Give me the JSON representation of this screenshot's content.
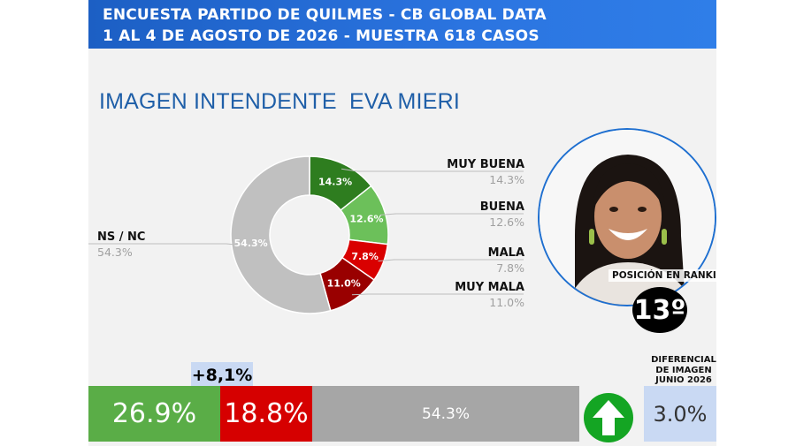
{
  "header": {
    "line1": "ENCUESTA PARTIDO DE QUILMES - CB GLOBAL DATA",
    "line2": "1 AL 4 DE AGOSTO DE 2026 - MUESTRA 618 CASOS"
  },
  "title": "IMAGEN INTENDENTE  EVA MIERI",
  "chart_data": {
    "type": "pie",
    "title": "IMAGEN INTENDENTE  EVA MIERI",
    "slices": [
      {
        "label": "MUY BUENA",
        "value": 14.3,
        "display": "14.3%",
        "color": "#2e7d1f"
      },
      {
        "label": "BUENA",
        "value": 12.6,
        "display": "12.6%",
        "color": "#6cc05a"
      },
      {
        "label": "MALA",
        "value": 7.8,
        "display": "7.8%",
        "color": "#d90000"
      },
      {
        "label": "MUY MALA",
        "value": 11.0,
        "display": "11.0%",
        "color": "#990000"
      },
      {
        "label": "NS / NC",
        "value": 54.3,
        "display": "54.3%",
        "color": "#c0c0c0"
      }
    ],
    "legend_placement": "callouts"
  },
  "ranking": {
    "label": "POSICIÓN EN RANKING",
    "value": "13º"
  },
  "summary": {
    "difference": "+8,1%",
    "positive": "26.9%",
    "negative": "18.8%",
    "ns_nc": "54.3%",
    "positive_value": 26.9,
    "negative_value": 18.8,
    "ns_nc_value": 54.3,
    "arrow_icon": "arrow-up-icon",
    "colors": {
      "positive": "#5aad47",
      "negative": "#d60000",
      "ns_nc": "#a6a6a6",
      "arrow": "#14a523"
    }
  },
  "image_differential": {
    "label_lines": [
      "DIFERENCIAL",
      "DE IMAGEN",
      "JUNIO 2026"
    ],
    "value": "3.0%"
  }
}
